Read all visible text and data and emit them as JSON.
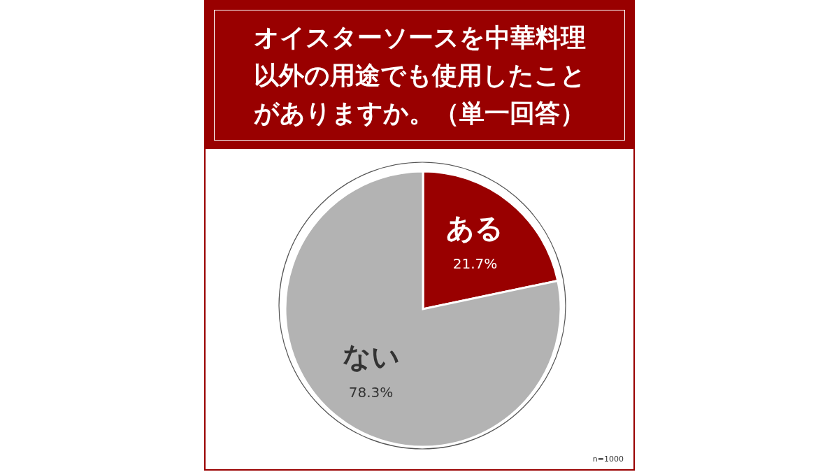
{
  "chart_data": {
    "type": "pie",
    "title": "オイスターソースを中華料理以外の用途でも使用したことがありますか。（単一回答）",
    "categories": [
      "ある",
      "ない"
    ],
    "values": [
      21.7,
      78.3
    ],
    "colors": [
      "#990000",
      "#b3b3b3"
    ],
    "value_labels": [
      "21.7%",
      "78.3%"
    ],
    "annotations": [
      "n=1000"
    ],
    "legend": false
  }
}
